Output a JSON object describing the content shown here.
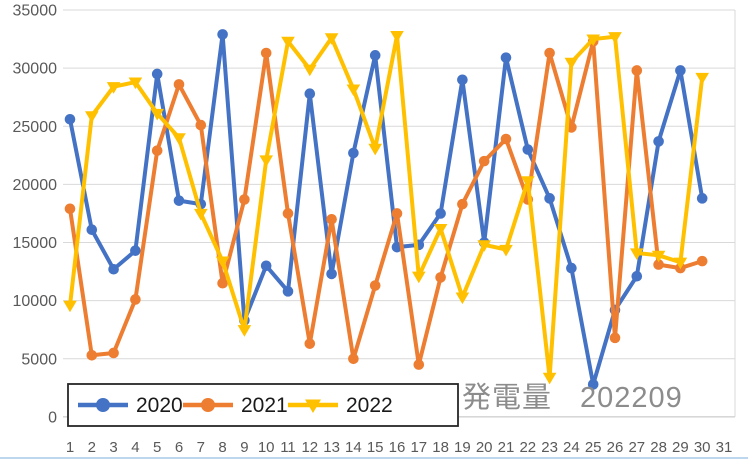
{
  "overlay": {
    "label": "発電量",
    "period": "202209"
  },
  "axis": {
    "y_ticks": [
      0,
      5000,
      10000,
      15000,
      20000,
      25000,
      30000,
      35000
    ],
    "x_labels": [
      "1",
      "2",
      "3",
      "4",
      "5",
      "6",
      "7",
      "8",
      "9",
      "10",
      "11",
      "12",
      "13",
      "14",
      "15",
      "16",
      "17",
      "18",
      "19",
      "20",
      "21",
      "22",
      "23",
      "24",
      "25",
      "26",
      "27",
      "28",
      "29",
      "30",
      "31"
    ]
  },
  "colors": {
    "series_2020": "#4472C4",
    "series_2021": "#ED7D31",
    "series_2022": "#FFC000",
    "gridline": "#d9d9d9",
    "zero_line": "#bfbfbf",
    "tick_text": "#595959",
    "legend_text": "#1a1a1a",
    "legend_border": "#262626",
    "overlay_text": "#8c8c8c"
  },
  "chart_data": {
    "type": "line",
    "title": "発電量 202209",
    "xlabel": "",
    "ylabel": "",
    "ylim": [
      0,
      35000
    ],
    "ytick_step": 5000,
    "grid": true,
    "legend_position": "bottom-left",
    "categories": [
      "1",
      "2",
      "3",
      "4",
      "5",
      "6",
      "7",
      "8",
      "9",
      "10",
      "11",
      "12",
      "13",
      "14",
      "15",
      "16",
      "17",
      "18",
      "19",
      "20",
      "21",
      "22",
      "23",
      "24",
      "25",
      "26",
      "27",
      "28",
      "29",
      "30",
      "31"
    ],
    "series": [
      {
        "name": "2020",
        "color": "#4472C4",
        "marker": "circle",
        "values": [
          25600,
          16100,
          12700,
          14300,
          29500,
          18600,
          18300,
          32900,
          8300,
          13000,
          10800,
          27800,
          12300,
          22700,
          31100,
          14600,
          14800,
          17500,
          29000,
          15000,
          30900,
          23000,
          18800,
          12800,
          2800,
          9200,
          12100,
          23700,
          29800,
          18800,
          null
        ]
      },
      {
        "name": "2021",
        "color": "#ED7D31",
        "marker": "circle",
        "values": [
          17900,
          5300,
          5500,
          10100,
          22900,
          28600,
          25100,
          11500,
          18700,
          31300,
          17500,
          6300,
          17000,
          5000,
          11300,
          17500,
          4500,
          12000,
          18300,
          22000,
          23900,
          18700,
          31300,
          24900,
          32300,
          6800,
          29800,
          13100,
          12800,
          13400,
          null
        ]
      },
      {
        "name": "2022",
        "color": "#FFC000",
        "marker": "triangle-down",
        "values": [
          9600,
          25900,
          28400,
          28800,
          26100,
          24000,
          17500,
          13400,
          7500,
          22100,
          32300,
          29900,
          32600,
          28200,
          23100,
          32800,
          12100,
          16200,
          10300,
          14800,
          14400,
          20300,
          3400,
          30500,
          32500,
          32700,
          14100,
          13900,
          13300,
          29200,
          null
        ]
      }
    ]
  }
}
